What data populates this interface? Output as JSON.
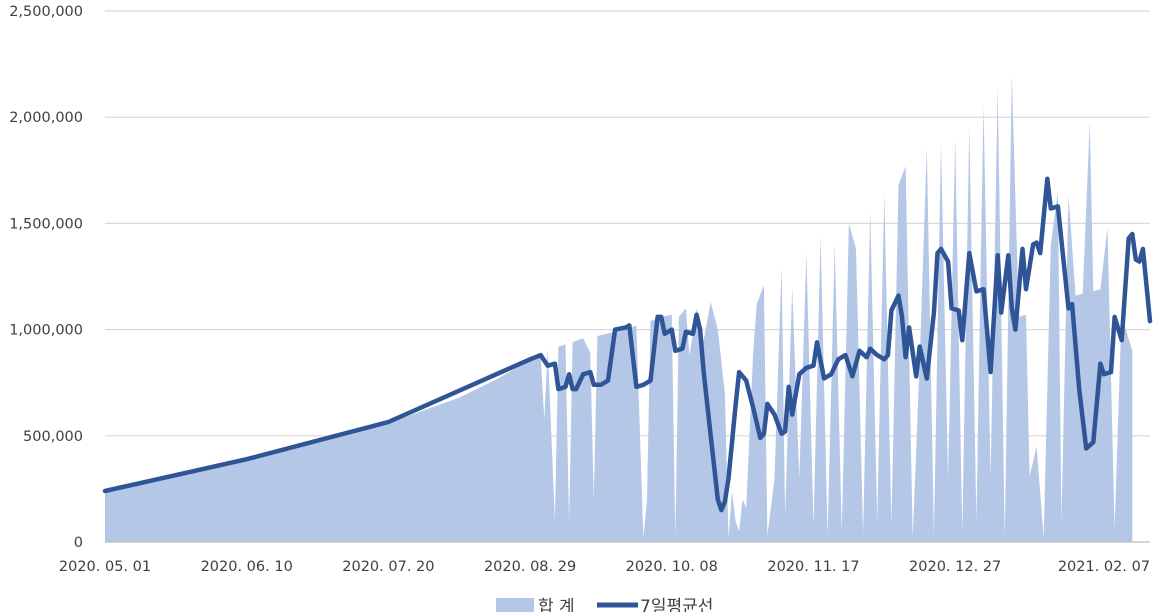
{
  "chart_data": {
    "type": "area",
    "title": "",
    "xlabel": "",
    "ylabel": "",
    "ylim": [
      0,
      2500000
    ],
    "yticks": [
      0,
      500000,
      1000000,
      1500000,
      2000000,
      2500000
    ],
    "ytick_labels": [
      "0",
      "500,000",
      "1,000,000",
      "1,500,000",
      "2,000,000",
      "2,500,000"
    ],
    "x_start": "2020-05-01",
    "x_end": "2021-02-20",
    "xtick_labels": [
      "2020. 05. 01",
      "2020. 06. 10",
      "2020. 07. 20",
      "2020. 08. 29",
      "2020. 10. 08",
      "2020. 11. 17",
      "2020. 12. 27",
      "2021. 02. 07"
    ],
    "xtick_dates": [
      "2020-05-01",
      "2020-06-10",
      "2020-07-20",
      "2020-08-29",
      "2020-10-08",
      "2020-11-17",
      "2020-12-27",
      "2021-02-07"
    ],
    "grid": true,
    "legend_position": "bottom",
    "colors": {
      "area": "#b4c7e7",
      "line": "#2f5597",
      "grid": "#d9d9d9",
      "axis": "#bfbfbf"
    },
    "series": [
      {
        "name": "합 계",
        "type": "area",
        "points": [
          [
            "2020-05-01",
            240000
          ],
          [
            "2020-05-20",
            300000
          ],
          [
            "2020-06-10",
            390000
          ],
          [
            "2020-06-30",
            470000
          ],
          [
            "2020-07-20",
            560000
          ],
          [
            "2020-08-09",
            680000
          ],
          [
            "2020-08-20",
            770000
          ],
          [
            "2020-08-29",
            860000
          ],
          [
            "2020-09-01",
            870000
          ],
          [
            "2020-09-02",
            580000
          ],
          [
            "2020-09-03",
            910000
          ],
          [
            "2020-09-05",
            100000
          ],
          [
            "2020-09-06",
            920000
          ],
          [
            "2020-09-08",
            930000
          ],
          [
            "2020-09-09",
            90000
          ],
          [
            "2020-09-10",
            940000
          ],
          [
            "2020-09-13",
            960000
          ],
          [
            "2020-09-15",
            890000
          ],
          [
            "2020-09-16",
            200000
          ],
          [
            "2020-09-17",
            970000
          ],
          [
            "2020-09-22",
            990000
          ],
          [
            "2020-09-25",
            1000000
          ],
          [
            "2020-09-28",
            1020000
          ],
          [
            "2020-09-30",
            20000
          ],
          [
            "2020-10-01",
            200000
          ],
          [
            "2020-10-02",
            1040000
          ],
          [
            "2020-10-05",
            1060000
          ],
          [
            "2020-10-08",
            1070000
          ],
          [
            "2020-10-09",
            20000
          ],
          [
            "2020-10-10",
            1060000
          ],
          [
            "2020-10-12",
            1100000
          ],
          [
            "2020-10-13",
            880000
          ],
          [
            "2020-10-15",
            1100000
          ],
          [
            "2020-10-17",
            950000
          ],
          [
            "2020-10-19",
            1130000
          ],
          [
            "2020-10-21",
            1000000
          ],
          [
            "2020-10-23",
            700000
          ],
          [
            "2020-10-24",
            20000
          ],
          [
            "2020-10-25",
            240000
          ],
          [
            "2020-10-26",
            100000
          ],
          [
            "2020-10-27",
            50000
          ],
          [
            "2020-10-28",
            200000
          ],
          [
            "2020-10-29",
            160000
          ],
          [
            "2020-10-31",
            900000
          ],
          [
            "2020-11-01",
            1120000
          ],
          [
            "2020-11-03",
            1210000
          ],
          [
            "2020-11-04",
            30000
          ],
          [
            "2020-11-06",
            300000
          ],
          [
            "2020-11-08",
            1300000
          ],
          [
            "2020-11-09",
            120000
          ],
          [
            "2020-11-11",
            1200000
          ],
          [
            "2020-11-13",
            300000
          ],
          [
            "2020-11-15",
            1360000
          ],
          [
            "2020-11-17",
            80000
          ],
          [
            "2020-11-19",
            1440000
          ],
          [
            "2020-11-21",
            30000
          ],
          [
            "2020-11-23",
            1400000
          ],
          [
            "2020-11-25",
            50000
          ],
          [
            "2020-11-27",
            1500000
          ],
          [
            "2020-11-29",
            1380000
          ],
          [
            "2020-12-01",
            40000
          ],
          [
            "2020-12-03",
            1560000
          ],
          [
            "2020-12-05",
            100000
          ],
          [
            "2020-12-07",
            1640000
          ],
          [
            "2020-12-09",
            80000
          ],
          [
            "2020-12-11",
            1680000
          ],
          [
            "2020-12-13",
            1770000
          ],
          [
            "2020-12-15",
            20000
          ],
          [
            "2020-12-17",
            850000
          ],
          [
            "2020-12-19",
            1860000
          ],
          [
            "2020-12-21",
            30000
          ],
          [
            "2020-12-23",
            1880000
          ],
          [
            "2020-12-25",
            300000
          ],
          [
            "2020-12-27",
            1900000
          ],
          [
            "2020-12-29",
            40000
          ],
          [
            "2020-12-31",
            1960000
          ],
          [
            "2021-01-02",
            100000
          ],
          [
            "2021-01-04",
            2060000
          ],
          [
            "2021-01-06",
            300000
          ],
          [
            "2021-01-08",
            2140000
          ],
          [
            "2021-01-10",
            20000
          ],
          [
            "2021-01-12",
            2200000
          ],
          [
            "2021-01-14",
            1060000
          ],
          [
            "2021-01-16",
            1070000
          ],
          [
            "2021-01-17",
            310000
          ],
          [
            "2021-01-19",
            450000
          ],
          [
            "2021-01-21",
            20000
          ],
          [
            "2021-01-23",
            1400000
          ],
          [
            "2021-01-25",
            1650000
          ],
          [
            "2021-01-26",
            100000
          ],
          [
            "2021-01-28",
            1630000
          ],
          [
            "2021-01-30",
            1160000
          ],
          [
            "2021-02-01",
            1170000
          ],
          [
            "2021-02-03",
            1980000
          ],
          [
            "2021-02-04",
            1180000
          ],
          [
            "2021-02-06",
            1190000
          ],
          [
            "2021-02-08",
            1480000
          ],
          [
            "2021-02-10",
            60000
          ],
          [
            "2021-02-12",
            1100000
          ],
          [
            "2021-02-13",
            1010000
          ],
          [
            "2021-02-15",
            900000
          ]
        ]
      },
      {
        "name": "7일평균선",
        "type": "line",
        "points": [
          [
            "2020-05-01",
            240000
          ],
          [
            "2020-06-10",
            390000
          ],
          [
            "2020-07-20",
            565000
          ],
          [
            "2020-08-29",
            860000
          ],
          [
            "2020-09-01",
            880000
          ],
          [
            "2020-09-03",
            830000
          ],
          [
            "2020-09-05",
            840000
          ],
          [
            "2020-09-06",
            720000
          ],
          [
            "2020-09-08",
            730000
          ],
          [
            "2020-09-09",
            790000
          ],
          [
            "2020-09-10",
            720000
          ],
          [
            "2020-09-11",
            720000
          ],
          [
            "2020-09-13",
            790000
          ],
          [
            "2020-09-15",
            800000
          ],
          [
            "2020-09-16",
            740000
          ],
          [
            "2020-09-18",
            740000
          ],
          [
            "2020-09-20",
            760000
          ],
          [
            "2020-09-22",
            1000000
          ],
          [
            "2020-09-25",
            1010000
          ],
          [
            "2020-09-26",
            1020000
          ],
          [
            "2020-09-28",
            730000
          ],
          [
            "2020-09-30",
            740000
          ],
          [
            "2020-10-02",
            760000
          ],
          [
            "2020-10-04",
            1060000
          ],
          [
            "2020-10-05",
            1060000
          ],
          [
            "2020-10-06",
            980000
          ],
          [
            "2020-10-08",
            1000000
          ],
          [
            "2020-10-09",
            900000
          ],
          [
            "2020-10-11",
            910000
          ],
          [
            "2020-10-12",
            990000
          ],
          [
            "2020-10-14",
            980000
          ],
          [
            "2020-10-15",
            1070000
          ],
          [
            "2020-10-16",
            1000000
          ],
          [
            "2020-10-17",
            800000
          ],
          [
            "2020-10-19",
            500000
          ],
          [
            "2020-10-20",
            350000
          ],
          [
            "2020-10-21",
            200000
          ],
          [
            "2020-10-22",
            150000
          ],
          [
            "2020-10-23",
            190000
          ],
          [
            "2020-10-24",
            300000
          ],
          [
            "2020-10-26",
            640000
          ],
          [
            "2020-10-27",
            800000
          ],
          [
            "2020-10-29",
            760000
          ],
          [
            "2020-10-31",
            630000
          ],
          [
            "2020-11-02",
            490000
          ],
          [
            "2020-11-03",
            510000
          ],
          [
            "2020-11-04",
            650000
          ],
          [
            "2020-11-06",
            600000
          ],
          [
            "2020-11-08",
            510000
          ],
          [
            "2020-11-09",
            520000
          ],
          [
            "2020-11-10",
            730000
          ],
          [
            "2020-11-11",
            600000
          ],
          [
            "2020-11-13",
            790000
          ],
          [
            "2020-11-15",
            820000
          ],
          [
            "2020-11-17",
            830000
          ],
          [
            "2020-11-18",
            940000
          ],
          [
            "2020-11-20",
            770000
          ],
          [
            "2020-11-22",
            790000
          ],
          [
            "2020-11-24",
            860000
          ],
          [
            "2020-11-26",
            880000
          ],
          [
            "2020-11-28",
            780000
          ],
          [
            "2020-11-30",
            900000
          ],
          [
            "2020-12-02",
            870000
          ],
          [
            "2020-12-03",
            910000
          ],
          [
            "2020-12-05",
            880000
          ],
          [
            "2020-12-07",
            860000
          ],
          [
            "2020-12-08",
            880000
          ],
          [
            "2020-12-09",
            1090000
          ],
          [
            "2020-12-11",
            1160000
          ],
          [
            "2020-12-12",
            1060000
          ],
          [
            "2020-12-13",
            870000
          ],
          [
            "2020-12-14",
            1010000
          ],
          [
            "2020-12-16",
            780000
          ],
          [
            "2020-12-17",
            920000
          ],
          [
            "2020-12-19",
            770000
          ],
          [
            "2020-12-21",
            1080000
          ],
          [
            "2020-12-22",
            1360000
          ],
          [
            "2020-12-23",
            1380000
          ],
          [
            "2020-12-25",
            1320000
          ],
          [
            "2020-12-26",
            1100000
          ],
          [
            "2020-12-28",
            1090000
          ],
          [
            "2020-12-29",
            950000
          ],
          [
            "2020-12-31",
            1360000
          ],
          [
            "2021-01-02",
            1180000
          ],
          [
            "2021-01-04",
            1190000
          ],
          [
            "2021-01-06",
            800000
          ],
          [
            "2021-01-08",
            1350000
          ],
          [
            "2021-01-09",
            1080000
          ],
          [
            "2021-01-11",
            1350000
          ],
          [
            "2021-01-12",
            1100000
          ],
          [
            "2021-01-13",
            1000000
          ],
          [
            "2021-01-15",
            1380000
          ],
          [
            "2021-01-16",
            1190000
          ],
          [
            "2021-01-18",
            1400000
          ],
          [
            "2021-01-19",
            1410000
          ],
          [
            "2021-01-20",
            1360000
          ],
          [
            "2021-01-22",
            1710000
          ],
          [
            "2021-01-23",
            1570000
          ],
          [
            "2021-01-25",
            1580000
          ],
          [
            "2021-01-28",
            1100000
          ],
          [
            "2021-01-29",
            1120000
          ],
          [
            "2021-01-31",
            720000
          ],
          [
            "2021-02-02",
            440000
          ],
          [
            "2021-02-04",
            470000
          ],
          [
            "2021-02-06",
            840000
          ],
          [
            "2021-02-07",
            790000
          ],
          [
            "2021-02-09",
            800000
          ],
          [
            "2021-02-10",
            1060000
          ],
          [
            "2021-02-12",
            950000
          ],
          [
            "2021-02-14",
            1430000
          ],
          [
            "2021-02-15",
            1450000
          ],
          [
            "2021-02-16",
            1330000
          ],
          [
            "2021-02-17",
            1320000
          ],
          [
            "2021-02-18",
            1380000
          ],
          [
            "2021-02-20",
            1040000
          ]
        ]
      }
    ]
  }
}
